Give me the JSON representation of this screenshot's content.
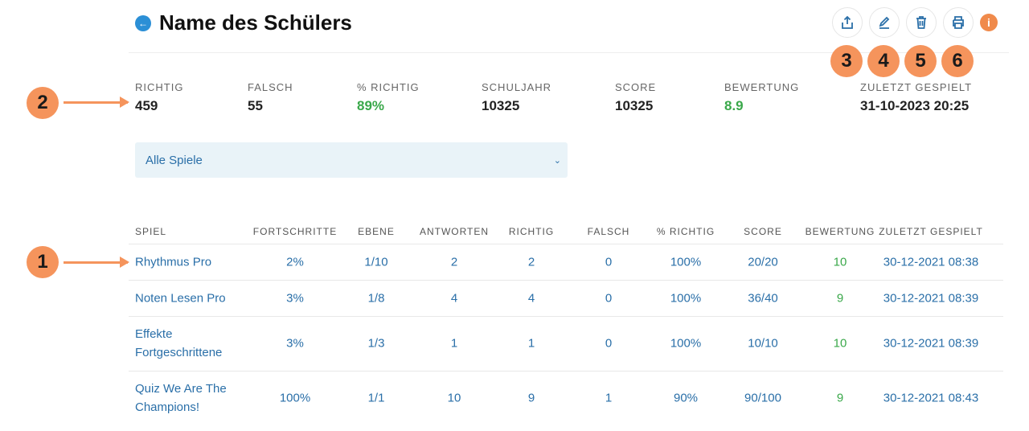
{
  "header": {
    "title": "Name des Schülers",
    "back_icon": "arrow-left-circle-icon"
  },
  "toolbar": [
    {
      "name": "share",
      "icon": "share-icon",
      "badge": "3"
    },
    {
      "name": "edit",
      "icon": "pencil-icon",
      "badge": "4"
    },
    {
      "name": "delete",
      "icon": "trash-icon",
      "badge": "5"
    },
    {
      "name": "print",
      "icon": "printer-icon",
      "badge": "6"
    }
  ],
  "info_icon": "info-icon",
  "annotations": {
    "table": "1",
    "stats": "2"
  },
  "stats": [
    {
      "label": "RICHTIG",
      "value": "459"
    },
    {
      "label": "FALSCH",
      "value": "55"
    },
    {
      "label": "% RICHTIG",
      "value": "89%",
      "color": "#3aa84a"
    },
    {
      "label": "SCHULJAHR",
      "value": "10325"
    },
    {
      "label": "SCORE",
      "value": "10325"
    },
    {
      "label": "BEWERTUNG",
      "value": "8.9",
      "color": "#3aa84a"
    },
    {
      "label": "ZULETZT GESPIELT",
      "value": "31-10-2023 20:25"
    }
  ],
  "filter": {
    "selected": "Alle Spiele"
  },
  "table": {
    "columns": [
      "SPIEL",
      "FORTSCHRITTE",
      "EBENE",
      "ANTWORTEN",
      "RICHTIG",
      "FALSCH",
      "% RICHTIG",
      "SCORE",
      "BEWERTUNG",
      "ZULETZT GESPIELT"
    ],
    "rows": [
      [
        "Rhythmus Pro",
        "2%",
        "1/10",
        "2",
        "2",
        "0",
        "100%",
        "20/20",
        "10",
        "30-12-2021 08:38"
      ],
      [
        "Noten Lesen Pro",
        "3%",
        "1/8",
        "4",
        "4",
        "0",
        "100%",
        "36/40",
        "9",
        "30-12-2021 08:39"
      ],
      [
        "Effekte Fortgeschrittene",
        "3%",
        "1/3",
        "1",
        "1",
        "0",
        "100%",
        "10/10",
        "10",
        "30-12-2021 08:39"
      ],
      [
        "Quiz We Are The Champions!",
        "100%",
        "1/1",
        "10",
        "9",
        "1",
        "90%",
        "90/100",
        "9",
        "30-12-2021 08:43"
      ]
    ]
  },
  "colors": {
    "link": "#2a6fa8",
    "green": "#3aa84a",
    "badge": "#f5945c"
  }
}
